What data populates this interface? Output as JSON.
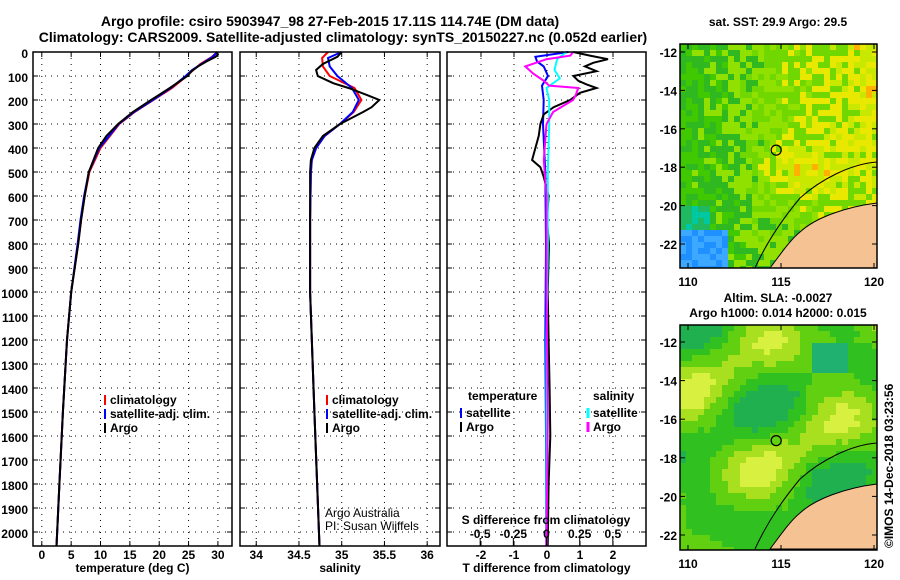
{
  "header": {
    "line1": "Argo profile: csiro 5903947_98 27-Feb-2015 17.11S 114.74E (DM data)",
    "line2": "Climatology: CARS2009. Satellite-adjusted climatology: synTS_20150227.nc (0.052d earlier)"
  },
  "credit": "©IMOS 14-Dec-2018 03:23:56",
  "colors": {
    "climatology": "#ff0000",
    "satellite": "#0000ff",
    "argo": "#000000",
    "sal_satellite": "#00ffff",
    "sal_argo": "#ff00ff",
    "land": "#f5c393"
  },
  "chart_data": [
    {
      "type": "line",
      "id": "temperature",
      "xlabel": "temperature (deg C)",
      "ylabel": "",
      "xlim": [
        -1.5,
        32.4
      ],
      "ylim": [
        2060,
        0
      ],
      "xticks": [
        "0",
        "5",
        "10",
        "15",
        "20",
        "25",
        "30"
      ],
      "xtick_values": [
        0,
        5,
        10,
        15,
        20,
        25,
        30
      ],
      "yticks": [
        "0",
        "100",
        "200",
        "300",
        "400",
        "500",
        "600",
        "700",
        "800",
        "900",
        "1000",
        "1100",
        "1200",
        "1300",
        "1400",
        "1500",
        "1600",
        "1700",
        "1800",
        "1900",
        "2000"
      ],
      "legend": [
        "climatology",
        "satellite-adj. clim.",
        "Argo"
      ],
      "series": [
        {
          "name": "climatology",
          "color": "#ff0000",
          "depth": [
            0,
            20,
            50,
            75,
            100,
            150,
            200,
            250,
            300,
            400,
            500,
            600,
            700,
            800,
            1000,
            1200,
            1500,
            1800,
            2060
          ],
          "values": [
            29.9,
            29.0,
            27.0,
            25.8,
            24.7,
            22.2,
            19.0,
            15.8,
            13.2,
            10.0,
            8.1,
            7.3,
            6.7,
            6.2,
            5.0,
            4.3,
            3.6,
            3.0,
            2.5
          ]
        },
        {
          "name": "satellite-adj. clim.",
          "color": "#0000ff",
          "depth": [
            0,
            20,
            50,
            75,
            100,
            150,
            200,
            250,
            300,
            400,
            500,
            600,
            700,
            800,
            1000,
            1200,
            1500,
            1800,
            2060
          ],
          "values": [
            29.9,
            29.1,
            27.2,
            25.6,
            24.5,
            22.0,
            18.9,
            15.7,
            13.1,
            9.8,
            8.0,
            7.2,
            6.6,
            6.1,
            5.0,
            4.3,
            3.6,
            3.0,
            2.5
          ]
        },
        {
          "name": "Argo",
          "color": "#000000",
          "depth": [
            0,
            10,
            20,
            40,
            60,
            80,
            100,
            130,
            150,
            180,
            200,
            250,
            300,
            350,
            400,
            500,
            600,
            700,
            800,
            1000,
            1200,
            1500,
            1800,
            2060
          ],
          "values": [
            29.8,
            30.0,
            29.6,
            28.0,
            26.6,
            25.5,
            24.8,
            23.0,
            21.8,
            19.9,
            18.6,
            15.5,
            13.0,
            11.0,
            9.6,
            8.0,
            7.3,
            6.7,
            6.2,
            5.0,
            4.3,
            3.6,
            3.0,
            2.5
          ]
        }
      ]
    },
    {
      "type": "line",
      "id": "salinity",
      "xlabel": "salinity",
      "xlim": [
        33.81,
        36.15
      ],
      "ylim": [
        2060,
        0
      ],
      "xticks": [
        "34",
        "34.5",
        "35",
        "35.5",
        "36"
      ],
      "xtick_values": [
        34,
        34.5,
        35,
        35.5,
        36
      ],
      "legend": [
        "climatology",
        "satellite-adj. clim.",
        "Argo"
      ],
      "annotation": [
        "Argo Australia",
        "PI: Susan Wijffels"
      ],
      "series": [
        {
          "name": "climatology",
          "color": "#ff0000",
          "depth": [
            0,
            25,
            60,
            100,
            150,
            200,
            250,
            300,
            350,
            400,
            450,
            500,
            700,
            1000,
            1500,
            2060
          ],
          "values": [
            34.84,
            34.77,
            34.78,
            34.86,
            35.15,
            35.23,
            35.14,
            34.98,
            34.8,
            34.7,
            34.65,
            34.64,
            34.63,
            34.63,
            34.68,
            34.74
          ]
        },
        {
          "name": "satellite-adj. clim.",
          "color": "#0000ff",
          "depth": [
            0,
            25,
            60,
            100,
            150,
            200,
            250,
            300,
            350,
            400,
            450,
            500,
            700,
            1000,
            1500,
            2060
          ],
          "values": [
            35.0,
            34.84,
            34.86,
            34.95,
            35.12,
            35.2,
            35.13,
            34.98,
            34.8,
            34.7,
            34.65,
            34.64,
            34.63,
            34.63,
            34.68,
            34.74
          ]
        },
        {
          "name": "Argo",
          "color": "#000000",
          "depth": [
            0,
            20,
            50,
            75,
            100,
            130,
            150,
            180,
            200,
            230,
            250,
            300,
            350,
            400,
            450,
            500,
            700,
            1000,
            1500,
            2060
          ],
          "values": [
            35.0,
            34.95,
            34.78,
            34.7,
            34.72,
            34.9,
            35.08,
            35.3,
            35.44,
            35.35,
            35.25,
            34.98,
            34.78,
            34.68,
            34.64,
            34.63,
            34.63,
            34.63,
            34.68,
            34.74
          ]
        }
      ]
    },
    {
      "type": "line",
      "id": "difference",
      "xlabel": "T difference from climatology",
      "xlim": [
        -3.03,
        3.0
      ],
      "ylim": [
        2060,
        0
      ],
      "xticks": [
        "-2",
        "-1",
        "0",
        "1",
        "2"
      ],
      "xtick_values": [
        -2,
        -1,
        0,
        1,
        2
      ],
      "s_axis_label": "S difference from climatology",
      "s_xlim": [
        -0.75,
        0.75
      ],
      "s_xticks": [
        "-0.5",
        "-0.25",
        "0",
        "0.25",
        "0.5"
      ],
      "s_xtick_values": [
        -0.5,
        -0.25,
        0,
        0.25,
        0.5
      ],
      "legend_t_title": "temperature",
      "legend_s_title": "salinity",
      "legend_t": [
        "satellite",
        "Argo"
      ],
      "legend_s": [
        "satellite",
        "Argo"
      ],
      "series": [
        {
          "name": "T satellite",
          "axis": "T",
          "color": "#0000ff",
          "depth": [
            0,
            20,
            40,
            60,
            100,
            140,
            200,
            300,
            500,
            800,
            1200,
            1600,
            2060
          ],
          "values": [
            0.65,
            -0.35,
            -0.3,
            -0.1,
            0.03,
            -0.15,
            -0.1,
            -0.12,
            -0.05,
            -0.03,
            -0.05,
            -0.03,
            -0.02
          ]
        },
        {
          "name": "T Argo",
          "axis": "T",
          "color": "#000000",
          "depth": [
            0,
            15,
            30,
            45,
            60,
            80,
            100,
            120,
            135,
            150,
            170,
            200,
            230,
            260,
            300,
            350,
            400,
            450,
            480,
            520,
            600,
            700,
            800,
            1000,
            1200,
            1400,
            1600,
            1800,
            2060
          ],
          "values": [
            0.8,
            1.3,
            1.85,
            1.4,
            1.15,
            1.5,
            0.8,
            0.95,
            1.2,
            1.5,
            1.0,
            0.7,
            0.2,
            -0.1,
            -0.2,
            -0.25,
            -0.35,
            -0.45,
            -0.2,
            -0.1,
            0.05,
            0.0,
            0.06,
            0.02,
            0.05,
            0.08,
            0.1,
            0.05,
            0.02
          ]
        },
        {
          "name": "S satellite",
          "axis": "S",
          "color": "#00ffff",
          "depth": [
            0,
            30,
            75,
            110,
            150,
            200,
            300,
            500,
            800,
            1200,
            2060
          ],
          "values": [
            0.15,
            0.08,
            0.06,
            0.1,
            0.0,
            0.02,
            0.02,
            0.01,
            0.01,
            0.0,
            0.0
          ]
        },
        {
          "name": "S Argo",
          "axis": "S",
          "color": "#ff00ff",
          "depth": [
            0,
            15,
            30,
            60,
            90,
            120,
            140,
            150,
            180,
            200,
            250,
            300,
            450,
            600,
            1000,
            1500,
            2060
          ],
          "values": [
            0.2,
            0.18,
            0.0,
            -0.16,
            -0.1,
            -0.02,
            0.02,
            0.24,
            0.22,
            0.2,
            0.05,
            0.0,
            -0.02,
            0.0,
            0.0,
            0.01,
            0.0
          ]
        }
      ]
    }
  ],
  "maps": [
    {
      "title": "sat. SST: 29.9 Argo: 29.5",
      "kind": "sst",
      "lon_ticks": [
        "110",
        "115",
        "120"
      ],
      "lat_ticks": [
        "-12",
        "-14",
        "-16",
        "-18",
        "-20",
        "-22"
      ],
      "argo_lon": 114.74,
      "argo_lat": -17.11
    },
    {
      "title": "Altim. SLA: -0.0027",
      "subtitle": "Argo h1000: 0.014 h2000: 0.015",
      "kind": "sla",
      "lon_ticks": [
        "110",
        "115",
        "120"
      ],
      "lat_ticks": [
        "-12",
        "-14",
        "-16",
        "-18",
        "-20",
        "-22"
      ],
      "argo_lon": 114.74,
      "argo_lat": -17.11
    }
  ]
}
